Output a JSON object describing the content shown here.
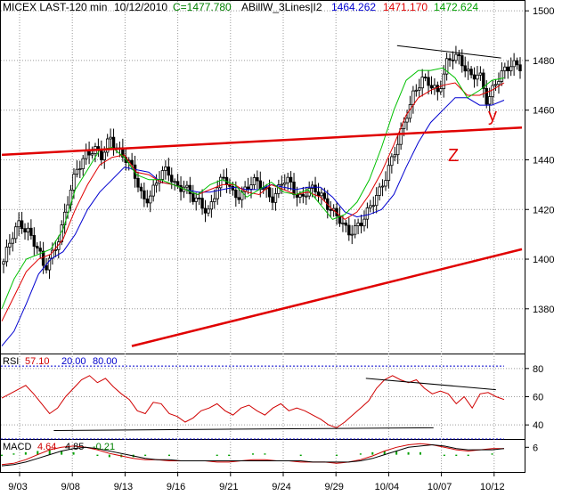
{
  "header": {
    "symbol": "MICEX LAST-120 min",
    "date": "10/12/2010",
    "close_label": "C=1477.780",
    "indicator_name": "ABillW_3Lines|I2",
    "line1_value": "1464.262",
    "line2_value": "1471.170",
    "line3_value": "1472.624"
  },
  "rsi_header": {
    "name": "RSI",
    "value": "57.10",
    "low": "20.00",
    "high": "80.00"
  },
  "macd_header": {
    "name": "MACD",
    "v1": "4.64",
    "v2": "4.85",
    "v3": "-0.21"
  },
  "annotations": {
    "wave_y": "y",
    "wave_z": "Z"
  },
  "colors": {
    "candle": "#000000",
    "ma_fast": "#00c000",
    "ma_mid": "#e00000",
    "ma_slow": "#0000d0",
    "trendline": "#e00000",
    "rsi_line": "#d00000",
    "rsi_levels": "#0000cc",
    "macd_line": "#d00000",
    "macd_hist": "#00a000",
    "grid": "#9a9a9a"
  },
  "chart_data": [
    {
      "type": "candlestick",
      "title": "MICEX LAST-120 min",
      "y_ticks": [
        1380,
        1400,
        1420,
        1440,
        1460,
        1480,
        1500
      ],
      "ylim": [
        1362,
        1504
      ],
      "x_tick_labels": [
        "9/03",
        "9/08",
        "9/13",
        "9/16",
        "9/21",
        "9/24",
        "9/29",
        "10/04",
        "10/07",
        "10/12"
      ],
      "grid": true,
      "axis_position": "right",
      "close_anchors": [
        1399,
        1408,
        1415,
        1412,
        1405,
        1395,
        1403,
        1412,
        1425,
        1436,
        1443,
        1445,
        1440,
        1449,
        1445,
        1440,
        1433,
        1424,
        1427,
        1433,
        1435,
        1430,
        1430,
        1424,
        1422,
        1420,
        1429,
        1432,
        1426,
        1427,
        1430,
        1430,
        1428,
        1425,
        1431,
        1430,
        1425,
        1428,
        1427,
        1424,
        1421,
        1416,
        1409,
        1413,
        1418,
        1422,
        1427,
        1438,
        1447,
        1455,
        1466,
        1474,
        1471,
        1465,
        1479,
        1484,
        1478,
        1472,
        1476,
        1464,
        1470,
        1475,
        1480,
        1478
      ],
      "overlay_series": [
        {
          "name": "1464.262",
          "color": "#0000d0",
          "values": [
            1365,
            1371,
            1382,
            1394,
            1400,
            1403,
            1410,
            1420,
            1427,
            1432,
            1437,
            1436,
            1435,
            1431,
            1430,
            1428,
            1427,
            1427,
            1428,
            1429,
            1428,
            1428,
            1430,
            1429,
            1428,
            1429,
            1429,
            1425,
            1419,
            1417,
            1418,
            1420,
            1426,
            1437,
            1447,
            1455,
            1460,
            1465,
            1465,
            1462,
            1462,
            1464
          ]
        },
        {
          "name": "1471.170",
          "color": "#e00000",
          "values": [
            1375,
            1385,
            1395,
            1400,
            1402,
            1408,
            1420,
            1430,
            1438,
            1441,
            1442,
            1435,
            1434,
            1431,
            1430,
            1428,
            1426,
            1428,
            1430,
            1430,
            1427,
            1426,
            1430,
            1428,
            1426,
            1427,
            1425,
            1420,
            1416,
            1419,
            1426,
            1435,
            1446,
            1458,
            1465,
            1468,
            1470,
            1471,
            1466,
            1466,
            1468,
            1471
          ]
        },
        {
          "name": "1472.624",
          "color": "#00c000",
          "values": [
            1380,
            1392,
            1400,
            1402,
            1404,
            1412,
            1428,
            1436,
            1444,
            1445,
            1441,
            1434,
            1432,
            1432,
            1430,
            1428,
            1426,
            1430,
            1432,
            1430,
            1425,
            1428,
            1431,
            1427,
            1426,
            1428,
            1422,
            1416,
            1418,
            1423,
            1432,
            1445,
            1460,
            1472,
            1476,
            1476,
            1477,
            1473,
            1465,
            1468,
            1472,
            1473
          ]
        }
      ],
      "trendlines": [
        {
          "from": [
            0,
            1442
          ],
          "to": [
            1,
            1453
          ]
        },
        {
          "from": [
            0.25,
            1365
          ],
          "to": [
            1,
            1404
          ]
        },
        {
          "from": [
            0.76,
            1486
          ],
          "to": [
            0.96,
            1481
          ]
        }
      ]
    },
    {
      "type": "line",
      "title": "RSI",
      "y_ticks": [
        40,
        60,
        80
      ],
      "ylim": [
        30,
        90
      ],
      "levels": [
        20,
        80
      ],
      "values": [
        59,
        62,
        65,
        68,
        62,
        55,
        48,
        52,
        60,
        66,
        72,
        75,
        70,
        73,
        67,
        62,
        58,
        50,
        48,
        56,
        55,
        48,
        46,
        42,
        45,
        50,
        52,
        55,
        50,
        47,
        52,
        54,
        50,
        47,
        52,
        55,
        50,
        52,
        50,
        47,
        44,
        40,
        38,
        42,
        47,
        52,
        57,
        66,
        72,
        75,
        72,
        70,
        72,
        66,
        62,
        64,
        62,
        55,
        60,
        52,
        62,
        63,
        60,
        58
      ],
      "trendlines": [
        {
          "from": [
            0.1,
            36
          ],
          "to": [
            0.83,
            38
          ]
        },
        {
          "from": [
            0.7,
            73
          ],
          "to": [
            0.95,
            65
          ]
        }
      ]
    },
    {
      "type": "line",
      "title": "MACD",
      "y_ticks": [
        6
      ],
      "ylim": [
        -14,
        12
      ],
      "series": [
        {
          "name": "4.64",
          "values": [
            -8,
            -7,
            -4,
            0,
            4,
            6,
            7,
            6,
            4,
            1,
            -1,
            -3,
            -4,
            -4,
            -5,
            -5,
            -5,
            -5,
            -6,
            -6,
            -5,
            -4,
            -4,
            -5,
            -5,
            -6,
            -6,
            -6,
            -7,
            -6,
            -4,
            -1,
            3,
            6,
            8,
            9,
            8,
            6,
            4,
            3,
            4,
            5,
            5
          ]
        },
        {
          "name": "4.85",
          "values": [
            -9,
            -8,
            -6,
            -3,
            0,
            3,
            5,
            6,
            5,
            3,
            1,
            -1,
            -3,
            -4,
            -4,
            -5,
            -5,
            -5,
            -5,
            -5,
            -5,
            -5,
            -5,
            -5,
            -5,
            -5,
            -6,
            -6,
            -6,
            -6,
            -5,
            -3,
            0,
            3,
            6,
            7,
            8,
            7,
            5,
            4,
            4,
            4,
            5
          ]
        }
      ],
      "histogram": [
        -1,
        1,
        2,
        3,
        4,
        3,
        2,
        0,
        -1,
        -2,
        -2,
        -2,
        -1,
        0,
        -1,
        0,
        0,
        0,
        -1,
        -1,
        0,
        1,
        1,
        0,
        0,
        -1,
        0,
        0,
        -1,
        0,
        1,
        2,
        3,
        3,
        2,
        2,
        0,
        -1,
        -1,
        -1,
        0,
        1,
        0
      ]
    }
  ]
}
